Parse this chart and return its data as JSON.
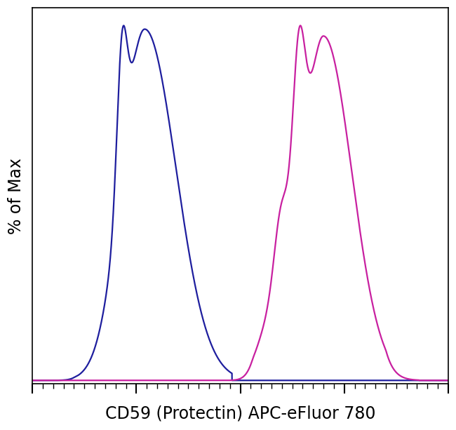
{
  "title": "",
  "xlabel": "CD59 (Protectin) APC-eFluor 780",
  "ylabel": "% of Max",
  "xlabel_fontsize": 17,
  "ylabel_fontsize": 17,
  "background_color": "#ffffff",
  "plot_bg_color": "#ffffff",
  "blue_color": "#1e1e9e",
  "magenta_color": "#c820a0",
  "line_width": 1.6,
  "xlim": [
    0,
    1
  ],
  "ylim": [
    -0.01,
    1.05
  ],
  "figsize": [
    6.5,
    6.13
  ],
  "dpi": 100
}
